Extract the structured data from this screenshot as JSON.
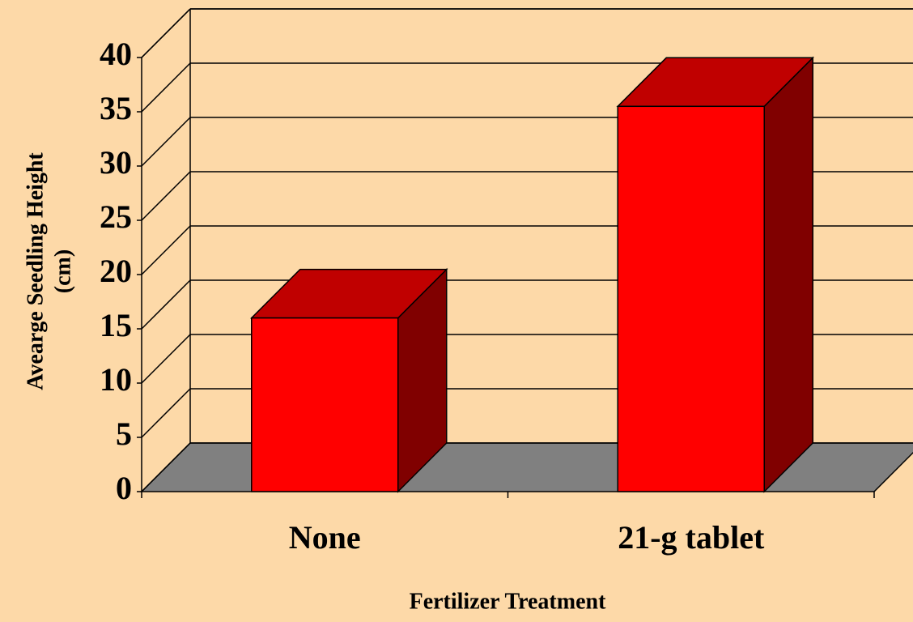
{
  "chart_data": {
    "type": "bar3d",
    "categories": [
      "None",
      "21-g tablet"
    ],
    "values": [
      16,
      35.5
    ],
    "color": "#ff0000",
    "xlabel": "Fertilizer Treatment",
    "ylabel": [
      "Avearge Seedling Height",
      "(cm)"
    ],
    "ylim": [
      0,
      40
    ],
    "yticks": [
      0,
      5,
      10,
      15,
      20,
      25,
      30,
      35,
      40
    ],
    "grid": true
  }
}
